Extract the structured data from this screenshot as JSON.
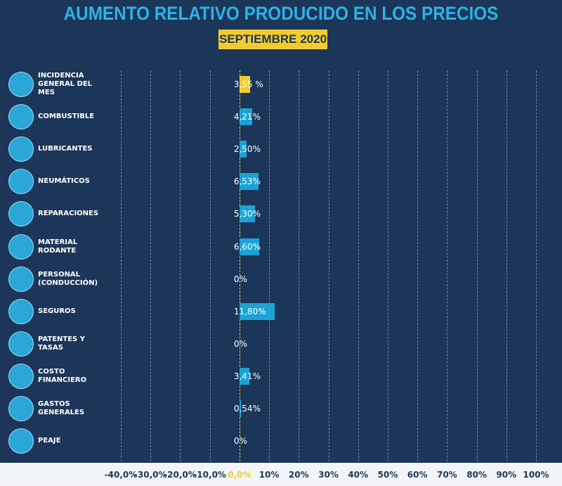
{
  "chart_data": {
    "type": "bar",
    "orientation": "horizontal",
    "title": "AUMENTO RELATIVO PRODUCIDO EN LOS PRECIOS",
    "subtitle": "SEPTIEMBRE 2020",
    "categories": [
      "INCIDENCIA GENERAL DEL MES",
      "COMBUSTIBLE",
      "LUBRICANTES",
      "NEUMÁTICOS",
      "REPARACIONES",
      "MATERIAL RODANTE",
      "PERSONAL (CONDUCCIÓN)",
      "SEGUROS",
      "PATENTES Y TASAS",
      "COSTO FINANCIERO",
      "GASTOS GENERALES",
      "PEAJE"
    ],
    "values": [
      3.55,
      4.21,
      2.5,
      6.53,
      5.3,
      6.6,
      0,
      11.8,
      0,
      3.41,
      0.54,
      0
    ],
    "value_labels": [
      "3,55 %",
      "4,21%",
      "2,50%",
      "6,53%",
      "5,30%",
      "6,60%",
      "0%",
      "11,80%",
      "0%",
      "3,41%",
      "0,54%",
      "0%"
    ],
    "colors": [
      "#f2cc2e",
      "#1ba3d6",
      "#1ba3d6",
      "#1ba3d6",
      "#1ba3d6",
      "#1ba3d6",
      "#1ba3d6",
      "#1ba3d6",
      "#1ba3d6",
      "#1ba3d6",
      "#1ba3d6",
      "#1ba3d6"
    ],
    "xlim": [
      -40,
      100
    ],
    "xticks": [
      {
        "value": -40,
        "label": "-40,0%"
      },
      {
        "value": -30,
        "label": "-30,0%"
      },
      {
        "value": -20,
        "label": "-20,0%"
      },
      {
        "value": -10,
        "label": "-10,0%"
      },
      {
        "value": 0,
        "label": "0,0%"
      },
      {
        "value": 10,
        "label": "10%"
      },
      {
        "value": 20,
        "label": "20%"
      },
      {
        "value": 30,
        "label": "30%"
      },
      {
        "value": 40,
        "label": "40%"
      },
      {
        "value": 50,
        "label": "50%"
      },
      {
        "value": 60,
        "label": "60%"
      },
      {
        "value": 70,
        "label": "70%"
      },
      {
        "value": 80,
        "label": "80%"
      },
      {
        "value": 90,
        "label": "90%"
      },
      {
        "value": 100,
        "label": "100%"
      }
    ],
    "grid": true,
    "zero_color": "#f2cc2e"
  }
}
